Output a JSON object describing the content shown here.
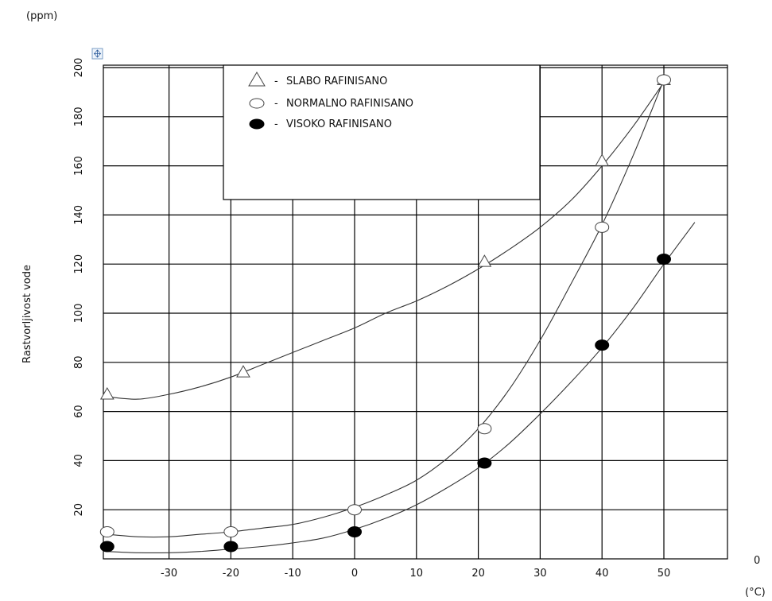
{
  "chart_data": {
    "type": "scatter",
    "ylabel": "Rastvorljivost vode",
    "yunit": "(ppm)",
    "xunit": "(°C)",
    "xlim": [
      -40,
      55
    ],
    "ylim": [
      0,
      200
    ],
    "x_ticks": [
      -30,
      -20,
      -10,
      0,
      10,
      20,
      30,
      40,
      50
    ],
    "y_ticks": [
      20,
      40,
      60,
      80,
      100,
      120,
      140,
      160,
      180,
      200
    ],
    "x_zero_label": "0",
    "grid": true,
    "legend_position": "top-center",
    "legend_labels": [
      "SLABO RAFINISANO",
      "NORMALNO RAFINISANO",
      "VISOKO RAFINISANO"
    ],
    "legend_prefix": "-",
    "series": [
      {
        "name": "SLABO RAFINISANO",
        "marker": "triangle",
        "points": [
          [
            -40,
            67
          ],
          [
            -18,
            76
          ],
          [
            21,
            121
          ],
          [
            40,
            162
          ],
          [
            50,
            195
          ]
        ],
        "curve": [
          [
            -40,
            66
          ],
          [
            -35,
            65
          ],
          [
            -30,
            67
          ],
          [
            -25,
            70
          ],
          [
            -20,
            74
          ],
          [
            -15,
            79
          ],
          [
            -10,
            84
          ],
          [
            -5,
            89
          ],
          [
            0,
            94
          ],
          [
            5,
            100
          ],
          [
            10,
            105
          ],
          [
            15,
            111
          ],
          [
            20,
            118
          ],
          [
            25,
            126
          ],
          [
            30,
            135
          ],
          [
            35,
            146
          ],
          [
            40,
            160
          ],
          [
            45,
            176
          ],
          [
            50,
            194
          ]
        ]
      },
      {
        "name": "NORMALNO RAFINISANO",
        "marker": "circle-open",
        "points": [
          [
            -40,
            11
          ],
          [
            -20,
            11
          ],
          [
            0,
            20
          ],
          [
            21,
            53
          ],
          [
            40,
            135
          ],
          [
            50,
            195
          ]
        ],
        "curve": [
          [
            -40,
            10
          ],
          [
            -35,
            9
          ],
          [
            -30,
            9
          ],
          [
            -25,
            10
          ],
          [
            -20,
            11
          ],
          [
            -15,
            12.5
          ],
          [
            -10,
            14
          ],
          [
            -5,
            17
          ],
          [
            0,
            21
          ],
          [
            5,
            26
          ],
          [
            10,
            32
          ],
          [
            15,
            41
          ],
          [
            20,
            53
          ],
          [
            25,
            69
          ],
          [
            30,
            89
          ],
          [
            35,
            112
          ],
          [
            40,
            136
          ],
          [
            45,
            164
          ],
          [
            50,
            195
          ]
        ]
      },
      {
        "name": "VISOKO RAFINISANO",
        "marker": "circle-filled",
        "points": [
          [
            -40,
            5
          ],
          [
            -20,
            5
          ],
          [
            0,
            11
          ],
          [
            21,
            39
          ],
          [
            40,
            87
          ],
          [
            50,
            122
          ]
        ],
        "curve": [
          [
            -40,
            3
          ],
          [
            -35,
            2.5
          ],
          [
            -30,
            2.5
          ],
          [
            -25,
            3
          ],
          [
            -20,
            4
          ],
          [
            -15,
            5
          ],
          [
            -10,
            6.5
          ],
          [
            -5,
            8.5
          ],
          [
            0,
            12
          ],
          [
            5,
            16.5
          ],
          [
            10,
            22
          ],
          [
            15,
            29
          ],
          [
            20,
            37
          ],
          [
            25,
            47
          ],
          [
            30,
            59
          ],
          [
            35,
            72
          ],
          [
            40,
            86
          ],
          [
            45,
            102
          ],
          [
            50,
            120
          ],
          [
            55,
            137
          ]
        ]
      }
    ]
  }
}
